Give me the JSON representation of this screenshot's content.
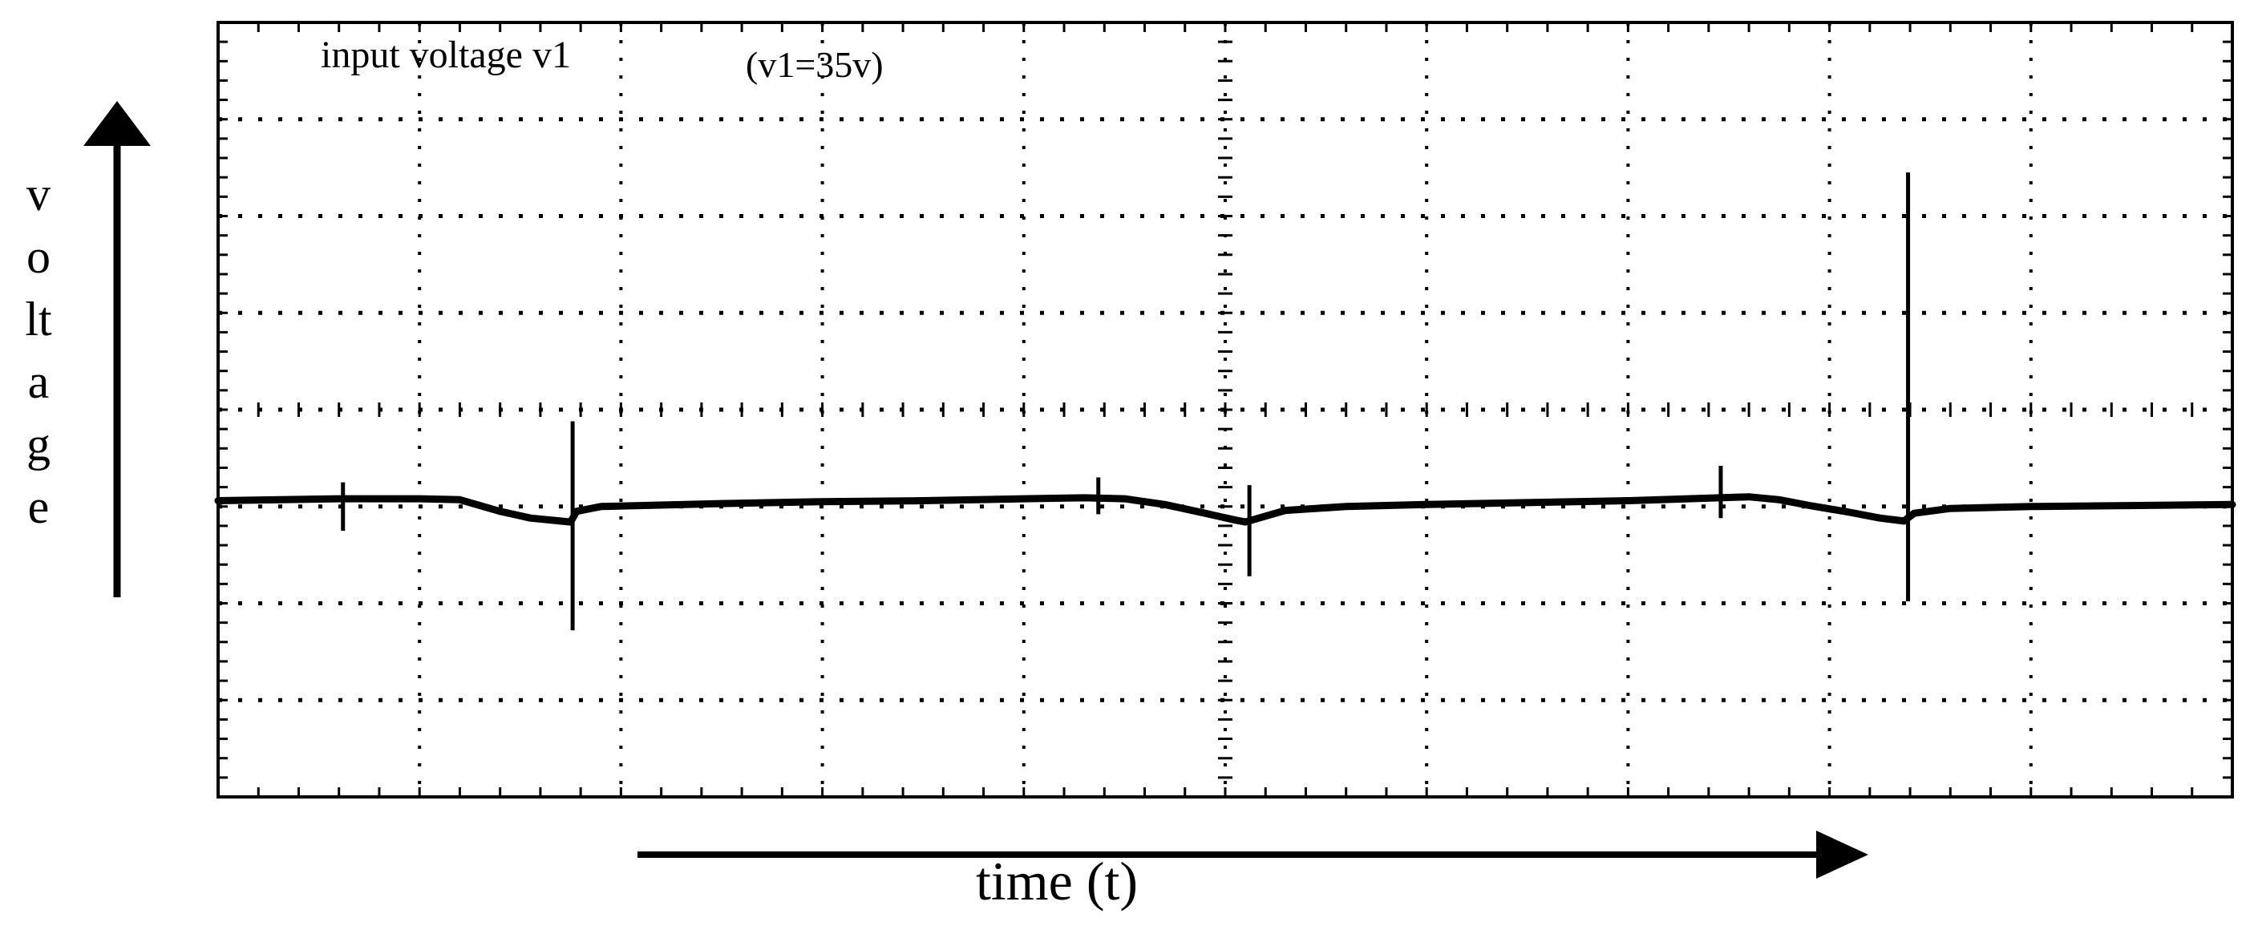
{
  "chart_data": {
    "type": "line",
    "title": "input voltage v1",
    "annotation": "(v1=35v)",
    "xlabel": "time (t)",
    "ylabel": "voltage",
    "ylabel_letters": [
      "v",
      "o",
      "lt",
      "a",
      "g",
      "e"
    ],
    "grid": true,
    "grid_divisions": {
      "x": 10,
      "y": 8
    },
    "line_color": "#000000",
    "ylim": [
      0,
      8
    ],
    "xlim": [
      0,
      10
    ],
    "series": [
      {
        "points": [
          [
            0,
            3.06
          ],
          [
            0.6,
            3.08
          ],
          [
            1.0,
            3.08
          ],
          [
            1.2,
            3.07
          ],
          [
            1.4,
            2.95
          ],
          [
            1.55,
            2.88
          ],
          [
            1.7,
            2.85
          ],
          [
            1.75,
            2.84
          ],
          [
            1.78,
            2.95
          ],
          [
            1.9,
            3.0
          ],
          [
            2.5,
            3.03
          ],
          [
            3.0,
            3.05
          ],
          [
            3.5,
            3.06
          ],
          [
            4.0,
            3.08
          ],
          [
            4.3,
            3.09
          ],
          [
            4.5,
            3.08
          ],
          [
            4.7,
            3.02
          ],
          [
            4.9,
            2.93
          ],
          [
            5.05,
            2.86
          ],
          [
            5.1,
            2.84
          ],
          [
            5.2,
            2.9
          ],
          [
            5.3,
            2.96
          ],
          [
            5.6,
            3.0
          ],
          [
            6.0,
            3.02
          ],
          [
            6.5,
            3.04
          ],
          [
            7.0,
            3.06
          ],
          [
            7.3,
            3.08
          ],
          [
            7.6,
            3.1
          ],
          [
            7.75,
            3.07
          ],
          [
            7.9,
            3.01
          ],
          [
            8.1,
            2.94
          ],
          [
            8.25,
            2.88
          ],
          [
            8.37,
            2.85
          ],
          [
            8.42,
            2.93
          ],
          [
            8.6,
            2.98
          ],
          [
            9.0,
            3.0
          ],
          [
            10,
            3.02
          ]
        ],
        "spikes": [
          {
            "x": 0.62,
            "high": 3.25,
            "low": 2.75
          },
          {
            "x": 1.76,
            "high": 3.88,
            "low": 1.72
          },
          {
            "x": 4.37,
            "high": 3.3,
            "low": 2.92
          },
          {
            "x": 5.12,
            "high": 3.22,
            "low": 2.28
          },
          {
            "x": 7.46,
            "high": 3.42,
            "low": 2.88
          },
          {
            "x": 8.39,
            "high": 6.45,
            "low": 2.02
          }
        ]
      }
    ]
  }
}
